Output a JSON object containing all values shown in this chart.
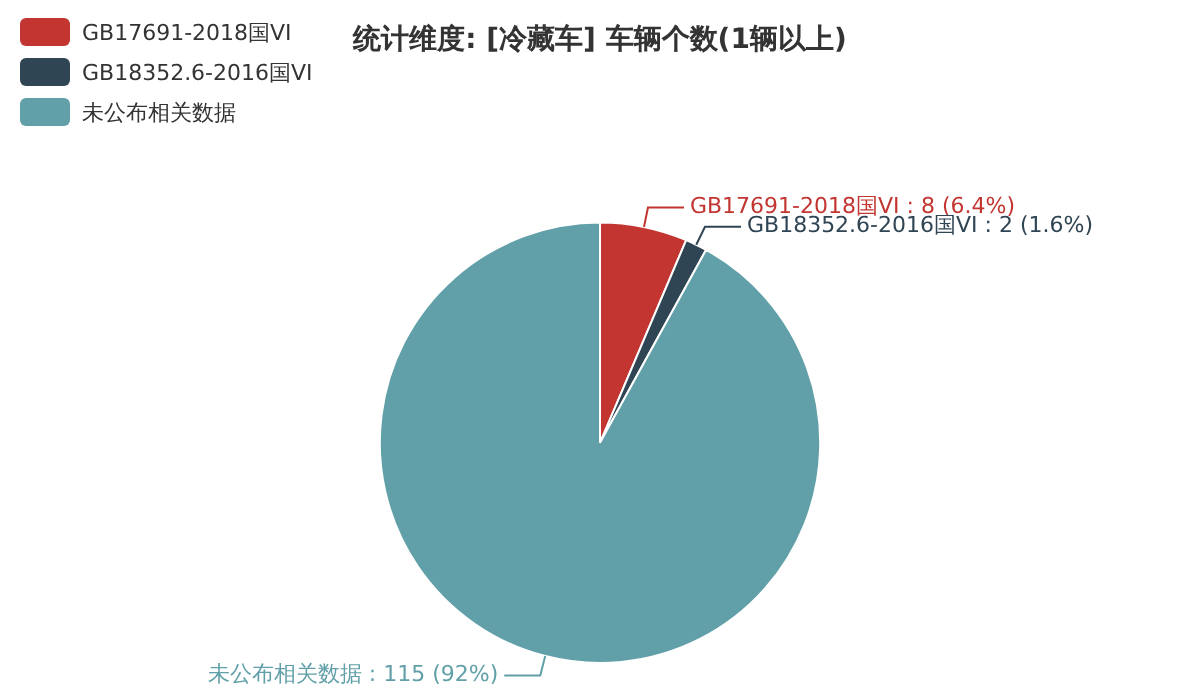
{
  "chart_data": {
    "type": "pie",
    "title": "统计维度: [冷藏车] 车辆个数(1辆以上)",
    "categories": [
      "GB17691-2018国VI",
      "GB18352.6-2016国VI",
      "未公布相关数据"
    ],
    "values": [
      8,
      2,
      115
    ],
    "colors": [
      "#c23531",
      "#2f4554",
      "#61a0a8"
    ],
    "value_labels": [
      ": 8 (6.4%)",
      ": 2 (1.6%)",
      ": 115 (92%)"
    ],
    "legend": "top left"
  }
}
